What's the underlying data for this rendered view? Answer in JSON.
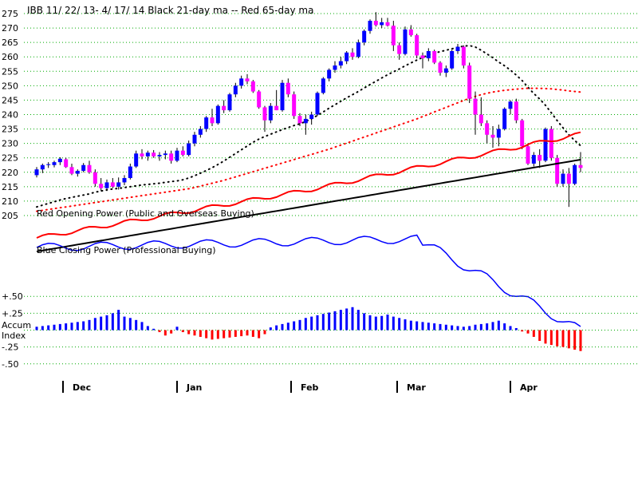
{
  "chart_data": {
    "type": "candlestick",
    "title": "IBB   11/ 22/ 13- 4/ 17/ 14    Black 21-day ma --  Red 65-day ma",
    "symbol": "IBB",
    "date_range": "11/ 22/ 13- 4/ 17/ 14",
    "price_axis": {
      "ticks": [
        "275",
        "270",
        "265",
        "260",
        "255",
        "250",
        "245",
        "240",
        "235",
        "230",
        "225",
        "220",
        "215",
        "210",
        "205"
      ],
      "ylim": [
        205,
        275
      ]
    },
    "price_candles": [
      [
        219.0,
        221.8,
        218.2,
        221.0
      ],
      [
        221.0,
        223.0,
        219.7,
        222.5
      ],
      [
        222.5,
        223.5,
        221.5,
        222.8
      ],
      [
        222.5,
        224.0,
        221.7,
        223.5
      ],
      [
        223.5,
        225.2,
        222.5,
        224.7
      ],
      [
        224.5,
        225.0,
        221.5,
        221.8
      ],
      [
        221.8,
        223.0,
        219.0,
        219.5
      ],
      [
        219.5,
        221.0,
        218.5,
        220.5
      ],
      [
        220.5,
        223.2,
        220.0,
        222.5
      ],
      [
        222.5,
        224.0,
        219.5,
        220.0
      ],
      [
        220.0,
        221.0,
        215.0,
        216.0
      ],
      [
        216.0,
        218.0,
        213.5,
        214.5
      ],
      [
        214.5,
        217.5,
        213.5,
        216.5
      ],
      [
        216.5,
        218.0,
        214.5,
        215.0
      ],
      [
        215.0,
        218.2,
        214.0,
        216.5
      ],
      [
        216.5,
        219.0,
        215.5,
        218.0
      ],
      [
        218.0,
        223.0,
        217.5,
        222.0
      ],
      [
        222.0,
        227.5,
        221.5,
        226.5
      ],
      [
        226.5,
        228.0,
        224.5,
        225.5
      ],
      [
        225.5,
        227.5,
        224.0,
        226.8
      ],
      [
        226.8,
        227.7,
        225.0,
        225.5
      ],
      [
        225.5,
        227.0,
        224.0,
        226.0
      ],
      [
        226.0,
        227.5,
        224.5,
        226.5
      ],
      [
        226.5,
        227.5,
        223.0,
        224.0
      ],
      [
        224.0,
        228.5,
        223.5,
        227.5
      ],
      [
        227.5,
        229.0,
        225.5,
        226.0
      ],
      [
        226.0,
        231.0,
        225.5,
        230.0
      ],
      [
        230.0,
        234.0,
        229.0,
        233.0
      ],
      [
        233.0,
        236.0,
        232.0,
        235.0
      ],
      [
        235.0,
        239.5,
        234.0,
        239.0
      ],
      [
        239.0,
        242.0,
        236.0,
        237.0
      ],
      [
        237.0,
        243.5,
        236.5,
        243.0
      ],
      [
        243.0,
        245.0,
        240.5,
        241.5
      ],
      [
        241.5,
        247.5,
        241.0,
        247.0
      ],
      [
        247.0,
        251.0,
        246.0,
        250.0
      ],
      [
        250.0,
        253.5,
        249.0,
        252.5
      ],
      [
        252.5,
        254.0,
        250.5,
        251.5
      ],
      [
        251.5,
        252.0,
        247.5,
        248.0
      ],
      [
        248.0,
        248.5,
        242.0,
        242.5
      ],
      [
        242.5,
        243.0,
        234.0,
        238.0
      ],
      [
        238.0,
        244.0,
        237.0,
        243.0
      ],
      [
        243.0,
        248.5,
        241.5,
        241.5
      ],
      [
        241.5,
        252.0,
        241.0,
        251.0
      ],
      [
        251.0,
        252.5,
        246.0,
        247.0
      ],
      [
        247.0,
        248.0,
        238.5,
        239.5
      ],
      [
        239.5,
        240.5,
        236.0,
        237.0
      ],
      [
        237.0,
        240.0,
        233.0,
        238.5
      ],
      [
        238.5,
        241.0,
        236.5,
        240.0
      ],
      [
        240.0,
        248.0,
        239.5,
        247.5
      ],
      [
        247.5,
        253.0,
        247.0,
        252.5
      ],
      [
        252.5,
        256.0,
        251.5,
        255.5
      ],
      [
        255.5,
        258.5,
        254.5,
        257.0
      ],
      [
        257.0,
        260.0,
        256.0,
        258.5
      ],
      [
        258.5,
        262.0,
        257.5,
        261.5
      ],
      [
        261.5,
        263.0,
        259.0,
        260.0
      ],
      [
        260.0,
        266.0,
        259.5,
        265.0
      ],
      [
        265.0,
        269.5,
        264.0,
        269.0
      ],
      [
        269.0,
        273.0,
        268.0,
        272.5
      ],
      [
        272.5,
        275.5,
        270.5,
        271.0
      ],
      [
        271.0,
        273.5,
        270.0,
        272.0
      ],
      [
        272.0,
        273.5,
        270.5,
        270.8
      ],
      [
        270.8,
        272.5,
        262.0,
        264.0
      ],
      [
        264.0,
        265.0,
        259.0,
        261.0
      ],
      [
        261.0,
        270.5,
        260.5,
        269.5
      ],
      [
        269.5,
        271.0,
        267.0,
        267.5
      ],
      [
        267.5,
        268.0,
        259.5,
        260.5
      ],
      [
        260.5,
        261.5,
        256.0,
        259.5
      ],
      [
        259.5,
        263.0,
        258.5,
        262.0
      ],
      [
        262.0,
        262.5,
        257.5,
        258.0
      ],
      [
        258.0,
        258.5,
        253.5,
        254.5
      ],
      [
        254.5,
        257.0,
        253.0,
        256.0
      ],
      [
        256.0,
        262.5,
        255.5,
        262.0
      ],
      [
        262.0,
        264.5,
        261.0,
        263.5
      ],
      [
        263.5,
        264.0,
        256.0,
        257.0
      ],
      [
        257.0,
        258.0,
        244.0,
        245.5
      ],
      [
        245.5,
        248.0,
        233.0,
        240.0
      ],
      [
        240.0,
        246.0,
        236.0,
        237.0
      ],
      [
        237.0,
        238.0,
        230.0,
        233.0
      ],
      [
        233.0,
        236.0,
        228.5,
        232.0
      ],
      [
        232.0,
        236.5,
        229.0,
        235.0
      ],
      [
        235.0,
        242.5,
        234.5,
        242.0
      ],
      [
        242.0,
        245.0,
        240.0,
        244.5
      ],
      [
        244.5,
        245.5,
        237.0,
        238.0
      ],
      [
        238.0,
        238.5,
        228.0,
        229.0
      ],
      [
        229.0,
        230.0,
        222.5,
        223.0
      ],
      [
        223.0,
        227.0,
        222.0,
        226.0
      ],
      [
        226.0,
        228.0,
        221.5,
        224.0
      ],
      [
        224.0,
        235.5,
        223.5,
        235.0
      ],
      [
        235.0,
        236.0,
        224.0,
        225.0
      ],
      [
        225.0,
        226.0,
        215.0,
        216.0
      ],
      [
        216.0,
        221.0,
        215.0,
        219.5
      ],
      [
        219.5,
        221.5,
        208.0,
        216.0
      ],
      [
        216.0,
        223.0,
        215.5,
        222.5
      ],
      [
        222.5,
        227.0,
        220.0,
        221.5
      ]
    ],
    "ma21": [
      208.0,
      208.6,
      209.2,
      209.8,
      210.4,
      210.9,
      211.3,
      211.7,
      212.1,
      212.5,
      213.1,
      213.5,
      213.9,
      214.2,
      214.4,
      214.7,
      215.0,
      215.3,
      215.6,
      215.8,
      216.0,
      216.2,
      216.5,
      216.8,
      217.0,
      217.4,
      218.0,
      218.8,
      219.7,
      220.6,
      221.6,
      222.7,
      223.9,
      225.2,
      226.5,
      227.8,
      229.1,
      230.4,
      231.5,
      232.4,
      233.2,
      234.0,
      234.8,
      235.5,
      236.2,
      236.8,
      237.6,
      238.6,
      239.7,
      240.9,
      242.2,
      243.4,
      244.6,
      245.8,
      246.9,
      248.0,
      249.2,
      250.4,
      251.5,
      252.7,
      253.8,
      254.8,
      255.8,
      256.9,
      257.9,
      258.9,
      259.8,
      260.6,
      261.3,
      261.8,
      262.3,
      262.8,
      263.3,
      263.7,
      263.9,
      263.4,
      262.3,
      261.0,
      259.7,
      258.2,
      256.9,
      255.4,
      253.7,
      251.8,
      249.5,
      247.3,
      245.4,
      243.2,
      240.6,
      237.9,
      235.4,
      233.0,
      231.0,
      229.2
    ],
    "ma65": [
      206.5,
      206.8,
      207.1,
      207.4,
      207.7,
      208.0,
      208.3,
      208.6,
      208.9,
      209.2,
      209.5,
      209.8,
      210.1,
      210.4,
      210.7,
      211.0,
      211.3,
      211.6,
      211.9,
      212.2,
      212.5,
      212.8,
      213.1,
      213.4,
      213.7,
      214.0,
      214.3,
      214.7,
      215.2,
      215.7,
      216.2,
      216.7,
      217.2,
      217.8,
      218.4,
      219.0,
      219.6,
      220.2,
      220.8,
      221.4,
      222.0,
      222.6,
      223.2,
      223.8,
      224.4,
      225.0,
      225.6,
      226.2,
      226.8,
      227.4,
      228.0,
      228.7,
      229.4,
      230.1,
      230.8,
      231.5,
      232.2,
      232.9,
      233.6,
      234.3,
      235.0,
      235.7,
      236.4,
      237.1,
      237.8,
      238.5,
      239.3,
      240.1,
      240.9,
      241.7,
      242.5,
      243.3,
      244.1,
      244.9,
      245.6,
      246.3,
      246.9,
      247.4,
      247.8,
      248.1,
      248.4,
      248.6,
      248.8,
      249.0,
      249.1,
      249.1,
      249.1,
      249.0,
      248.9,
      248.7,
      248.5,
      248.2,
      248.0,
      247.8
    ],
    "opening_power": {
      "label": "Red Opening Power (Public and Overseas Buying)",
      "color": "#ff0000"
    },
    "closing_power": {
      "label": "Blue Closing Power (Professional Buying)",
      "color": "#0000ff"
    },
    "accum_index": {
      "label_line1": "Accum",
      "label_line2": "Index",
      "ticks": [
        "+.50",
        "+.25",
        "-.25",
        "-.50"
      ],
      "ylim": [
        -0.55,
        0.55
      ],
      "values": [
        0.05,
        0.06,
        0.07,
        0.08,
        0.09,
        0.1,
        0.11,
        0.12,
        0.13,
        0.15,
        0.18,
        0.2,
        0.22,
        0.25,
        0.3,
        0.2,
        0.18,
        0.15,
        0.12,
        0.06,
        0.02,
        -0.03,
        -0.08,
        -0.05,
        0.05,
        -0.03,
        -0.06,
        -0.08,
        -0.1,
        -0.12,
        -0.14,
        -0.13,
        -0.12,
        -0.11,
        -0.1,
        -0.09,
        -0.08,
        -0.1,
        -0.12,
        -0.06,
        0.04,
        0.07,
        0.09,
        0.11,
        0.13,
        0.15,
        0.18,
        0.2,
        0.22,
        0.24,
        0.26,
        0.28,
        0.3,
        0.32,
        0.34,
        0.3,
        0.25,
        0.22,
        0.2,
        0.21,
        0.23,
        0.2,
        0.18,
        0.16,
        0.14,
        0.13,
        0.12,
        0.11,
        0.1,
        0.09,
        0.08,
        0.07,
        0.06,
        0.05,
        0.06,
        0.08,
        0.09,
        0.1,
        0.12,
        0.14,
        0.1,
        0.06,
        0.03,
        -0.02,
        -0.05,
        -0.1,
        -0.16,
        -0.2,
        -0.22,
        -0.24,
        -0.25,
        -0.27,
        -0.29,
        -0.31
      ]
    },
    "months": [
      "Dec",
      "Jan",
      "Feb",
      "Mar",
      "Apr"
    ]
  }
}
